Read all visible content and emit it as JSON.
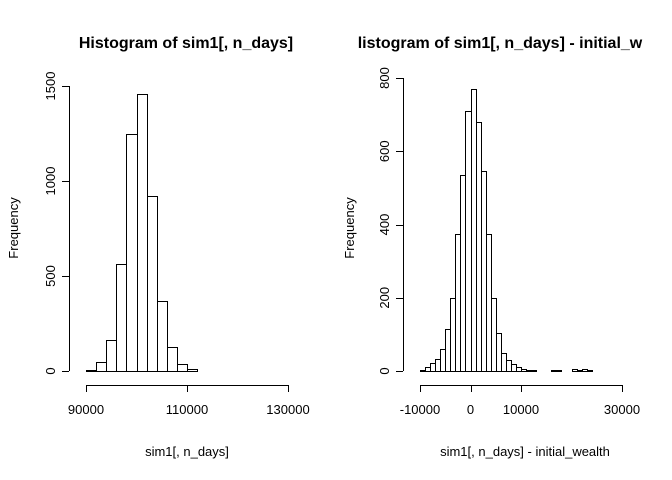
{
  "chart_data": [
    {
      "type": "bar",
      "title": "Histogram of sim1[, n_days]",
      "xlabel": "sim1[, n_days]",
      "ylabel": "Frequency",
      "xlim": [
        90000,
        130000
      ],
      "ylim": [
        0,
        1500
      ],
      "xticks": [
        90000,
        110000,
        130000
      ],
      "yticks": [
        0,
        500,
        1000,
        1500
      ],
      "bin_width": 2000,
      "bins_start": [
        90000,
        92000,
        94000,
        96000,
        98000,
        100000,
        102000,
        104000,
        106000,
        108000,
        110000,
        112000,
        114000,
        116000,
        118000,
        120000,
        122000,
        124000
      ],
      "values": [
        5,
        45,
        165,
        565,
        1250,
        1460,
        920,
        370,
        125,
        35,
        8,
        2,
        1,
        1,
        1,
        2,
        1,
        1
      ]
    },
    {
      "type": "bar",
      "title": "listogram of sim1[, n_days] - initial_w",
      "xlabel": "sim1[, n_days] - initial_wealth",
      "ylabel": "Frequency",
      "xlim": [
        -10000,
        30000
      ],
      "ylim": [
        0,
        800
      ],
      "xticks": [
        -10000,
        0,
        10000,
        30000
      ],
      "yticks": [
        0,
        200,
        400,
        600,
        800
      ],
      "bin_width": 1000,
      "bins_start": [
        -10000,
        -9000,
        -8000,
        -7000,
        -6000,
        -5000,
        -4000,
        -3000,
        -2000,
        -1000,
        0,
        1000,
        2000,
        3000,
        4000,
        5000,
        6000,
        7000,
        8000,
        9000,
        10000,
        11000,
        12000,
        13000,
        14000,
        15000,
        16000,
        17000,
        18000,
        19000,
        20000,
        21000,
        22000,
        23000
      ],
      "values": [
        3,
        10,
        22,
        32,
        60,
        115,
        200,
        375,
        535,
        710,
        770,
        680,
        545,
        375,
        200,
        105,
        50,
        30,
        18,
        10,
        5,
        3,
        2,
        1,
        1,
        1,
        4,
        4,
        1,
        1,
        6,
        3,
        6,
        2
      ]
    }
  ]
}
